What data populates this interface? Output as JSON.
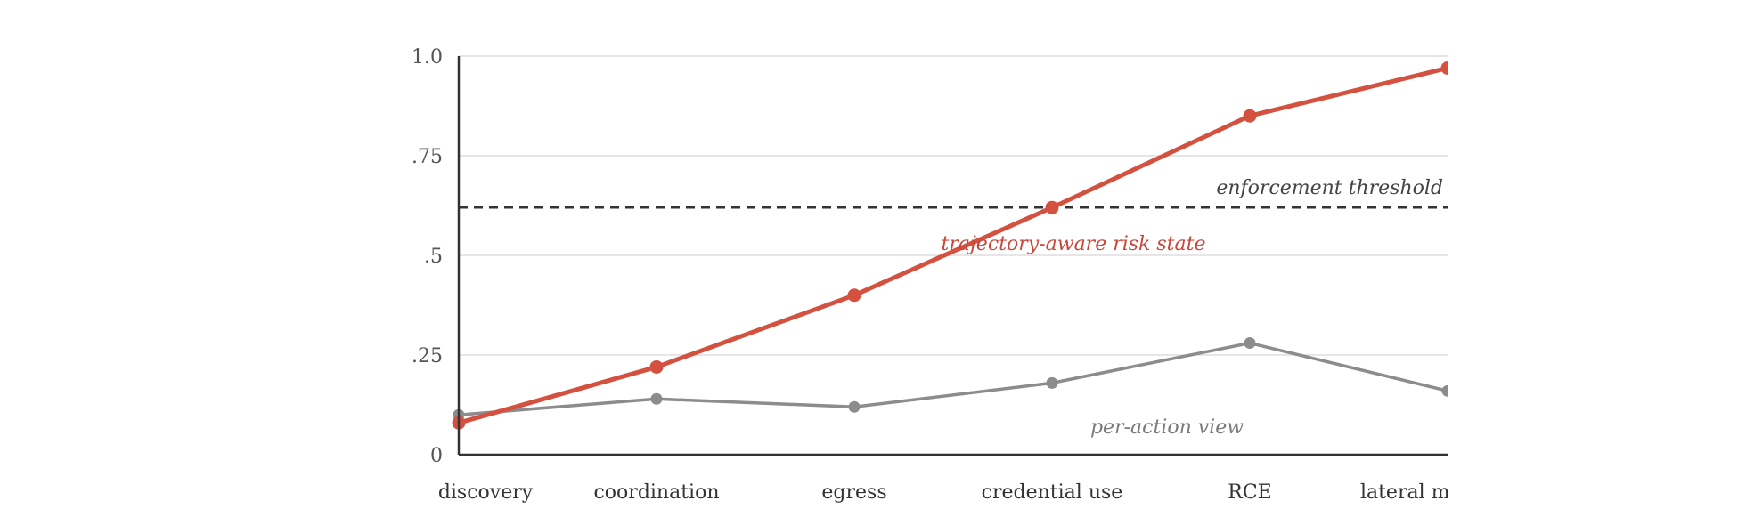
{
  "chart_data": {
    "type": "line",
    "title": "",
    "xlabel": "",
    "ylabel": "",
    "categories": [
      "discovery",
      "coordination",
      "egress",
      "credential use",
      "RCE",
      "lateral movement"
    ],
    "ylim": [
      0,
      1.0
    ],
    "y_ticks": [
      {
        "value": 0,
        "label": "0"
      },
      {
        "value": 0.25,
        "label": ".25"
      },
      {
        "value": 0.5,
        "label": ".5"
      },
      {
        "value": 0.75,
        "label": ".75"
      },
      {
        "value": 1.0,
        "label": "1.0"
      }
    ],
    "grid": true,
    "series": [
      {
        "name": "trajectory-aware risk state",
        "color": "#d45140",
        "values": [
          0.08,
          0.22,
          0.4,
          0.62,
          0.85,
          0.97
        ]
      },
      {
        "name": "per-action view",
        "color": "#8c8c8c",
        "values": [
          0.1,
          0.14,
          0.12,
          0.18,
          0.28,
          0.16
        ]
      }
    ],
    "threshold": {
      "label": "enforcement threshold",
      "value": 0.62,
      "color": "#333333"
    }
  }
}
